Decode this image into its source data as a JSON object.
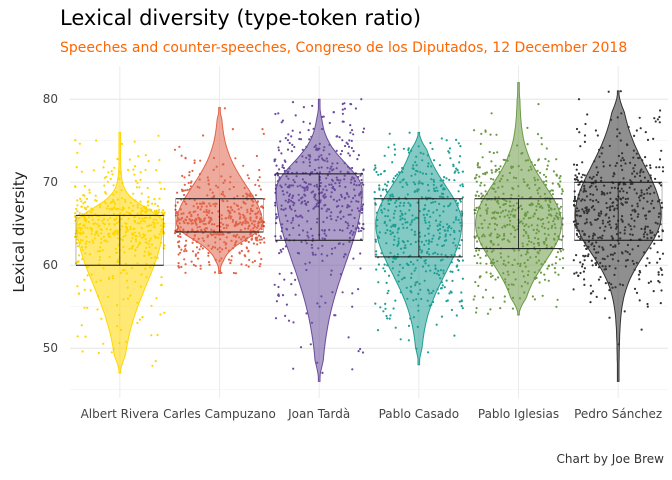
{
  "title": "Lexical diversity (type-token ratio)",
  "subtitle": "Speeches and counter-speeches, Congreso de los Diputados, 12 December 2018",
  "caption": "Chart by Joe Brew",
  "colors": {
    "Albert Rivera": "#ffd700",
    "Carles Campuzano": "#e0644a",
    "Joan Tardà": "#6a4c9c",
    "Pablo Casado": "#1f9e94",
    "Pablo Iglesias": "#6b9a45",
    "Pedro Sánchez": "#333333"
  },
  "chart_data": {
    "type": "violin",
    "title": "Lexical diversity (type-token ratio)",
    "subtitle": "Speeches and counter-speeches, Congreso de los Diputados, 12 December 2018",
    "xlabel": "",
    "ylabel": "Lexical diversity",
    "ylim": [
      44,
      84
    ],
    "yticks": [
      50,
      60,
      70,
      80
    ],
    "grid": true,
    "legend": "none",
    "categories": [
      "Albert Rivera",
      "Carles Campuzano",
      "Joan Tardà",
      "Pablo Casado",
      "Pablo Iglesias",
      "Pedro Sánchez"
    ],
    "series": [
      {
        "category": "Albert Rivera",
        "min": 47,
        "q1": 60,
        "median": 63,
        "q3": 66,
        "max": 76,
        "mode": 65
      },
      {
        "category": "Carles Campuzano",
        "min": 59,
        "q1": 64,
        "median": 65.5,
        "q3": 68,
        "max": 79,
        "mode": 65
      },
      {
        "category": "Joan Tardà",
        "min": 46,
        "q1": 63,
        "median": 67,
        "q3": 71,
        "max": 80,
        "mode": 69
      },
      {
        "category": "Pablo Casado",
        "min": 48,
        "q1": 61,
        "median": 64,
        "q3": 68,
        "max": 76,
        "mode": 65
      },
      {
        "category": "Pablo Iglesias",
        "min": 54,
        "q1": 62,
        "median": 65,
        "q3": 68,
        "max": 82,
        "mode": 65
      },
      {
        "category": "Pedro Sánchez",
        "min": 46,
        "q1": 63,
        "median": 66,
        "q3": 70,
        "max": 81,
        "mode": 66
      }
    ]
  }
}
